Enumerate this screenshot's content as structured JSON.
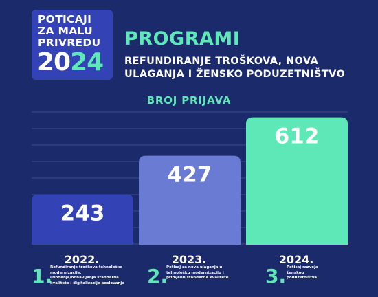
{
  "logo": {
    "line1": "POTICAJI",
    "line2": "ZA MALU",
    "line3": "PRIVREDU",
    "year_white": "20",
    "year_green": "24"
  },
  "header": {
    "title": "PROGRAMI",
    "subtitle": "REFUNDIRANJE TROŠKOVA, NOVA ULAGANJA I ŽENSKO PODUZETNIŠTVO"
  },
  "colors": {
    "background": "#1b2a6b",
    "accent": "#5ee8b7",
    "bar_2022": "#3342b4",
    "bar_2023": "#6a7bd4",
    "bar_2024": "#5ee8b7"
  },
  "chart_data": {
    "type": "bar",
    "title": "BROJ PRIJAVA",
    "categories": [
      "2022.",
      "2023.",
      "2024."
    ],
    "values": [
      243,
      427,
      612
    ],
    "ylim": [
      0,
      680
    ],
    "grid": true
  },
  "programs": [
    {
      "number": "1.",
      "text": "Refundiranje troškova tehnološke modernizacije, uvođenja/obnavljanja standarda kvalitete i digitalizacije poslovanja"
    },
    {
      "number": "2.",
      "text": "Poticaj za nova ulaganja u tehnološku modernizaciju i primjenu standarda kvalitete"
    },
    {
      "number": "3.",
      "text": "Poticaj razvoja ženskog poduzetništva"
    }
  ]
}
